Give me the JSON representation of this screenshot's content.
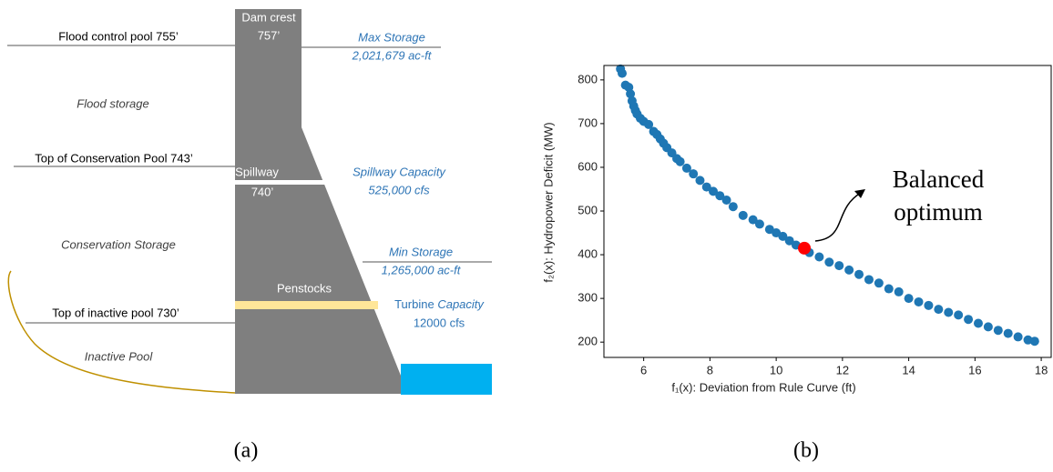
{
  "diagram": {
    "dam_crest": "Dam crest",
    "dam_crest_elev": "757’",
    "flood_control_pool": "Flood control pool 755’",
    "max_storage": "Max Storage",
    "max_storage_value": "2,021,679 ac-ft",
    "flood_storage": "Flood storage",
    "top_conservation_pool": "Top of Conservation Pool  743’",
    "spillway": "Spillway",
    "spillway_elev": "740’",
    "spillway_capacity": "Spillway Capacity",
    "spillway_capacity_value": "525,000 cfs",
    "conservation_storage": "Conservation Storage",
    "min_storage": "Min Storage",
    "min_storage_value": "1,265,000 ac-ft",
    "penstocks": "Penstocks",
    "turbine_word": "Turbine",
    "capacity_word": "Capacity",
    "turbine_capacity_value": "12000 cfs",
    "top_inactive_pool": "Top of inactive pool 730’",
    "inactive_pool": "Inactive Pool"
  },
  "captions": [
    "(a)",
    "(b)"
  ],
  "chart_data": {
    "type": "scatter",
    "xlabel": "f₁(x): Deviation from Rule Curve (ft)",
    "ylabel": "f₂(x): Hydropower Deficit (MW)",
    "xlim": [
      4.8,
      18.3
    ],
    "ylim": [
      165,
      833
    ],
    "xticks": [
      6,
      8,
      10,
      12,
      14,
      16,
      18
    ],
    "yticks": [
      200,
      300,
      400,
      500,
      600,
      700,
      800
    ],
    "grid": false,
    "series": [
      {
        "color": "#1f77b4",
        "x": [
          5.3,
          5.35,
          5.45,
          5.55,
          5.6,
          5.65,
          5.7,
          5.75,
          5.8,
          5.9,
          6.0,
          6.15,
          6.3,
          6.4,
          6.5,
          6.6,
          6.7,
          6.85,
          7.0,
          7.1,
          7.3,
          7.5,
          7.7,
          7.9,
          8.1,
          8.3,
          8.5,
          8.7,
          9.0,
          9.3,
          9.5,
          9.8,
          10.0,
          10.2,
          10.4,
          10.6,
          11.0,
          11.3,
          11.6,
          11.9,
          12.2,
          12.5,
          12.8,
          13.1,
          13.4,
          13.7,
          14.0,
          14.3,
          14.6,
          14.9,
          15.2,
          15.5,
          15.8,
          16.1,
          16.4,
          16.7,
          17.0,
          17.3,
          17.6,
          17.8
        ],
        "values": [
          825,
          815,
          788,
          783,
          768,
          752,
          740,
          730,
          722,
          712,
          705,
          698,
          682,
          675,
          665,
          655,
          645,
          633,
          620,
          613,
          598,
          585,
          570,
          555,
          545,
          535,
          525,
          510,
          490,
          480,
          470,
          458,
          450,
          442,
          432,
          422,
          405,
          395,
          383,
          375,
          365,
          355,
          343,
          335,
          322,
          315,
          300,
          292,
          284,
          275,
          268,
          262,
          252,
          243,
          235,
          227,
          220,
          212,
          205,
          202
        ]
      }
    ],
    "highlight": {
      "x": 10.85,
      "y": 415,
      "color": "#ff0000"
    },
    "annotation_lines": [
      "Balanced",
      "optimum"
    ]
  }
}
